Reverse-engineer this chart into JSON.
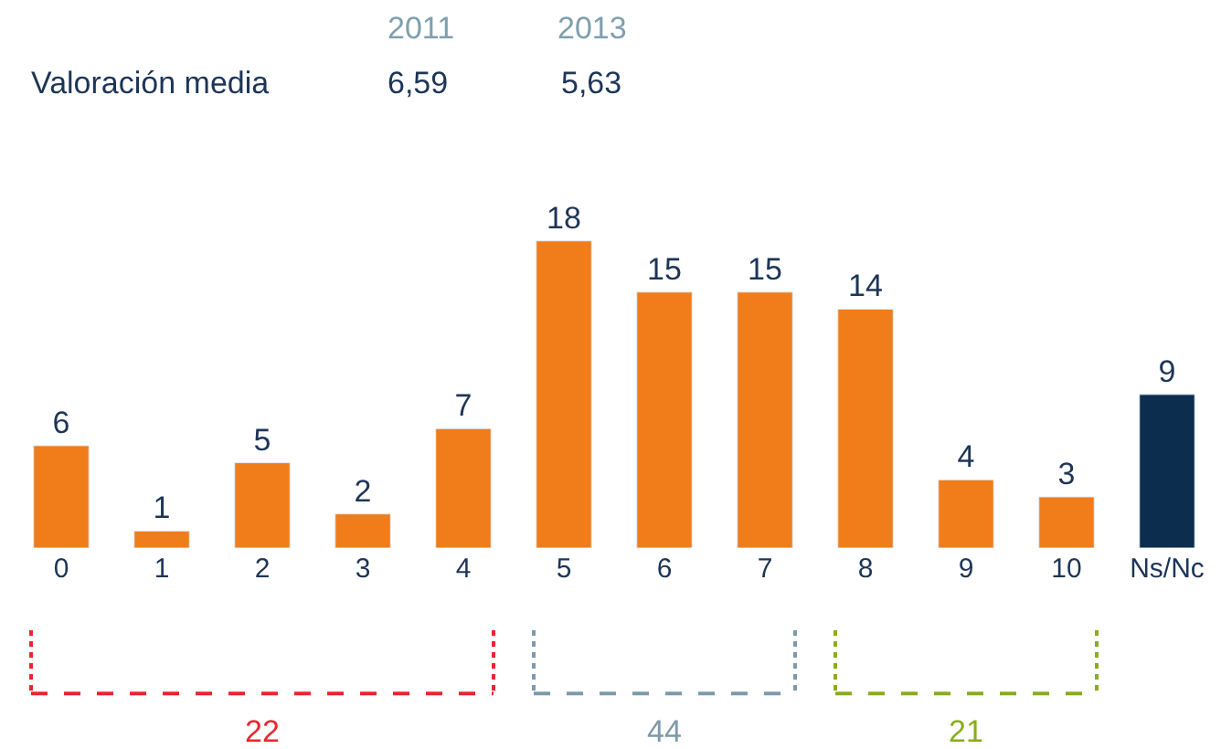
{
  "chart_data": {
    "type": "bar",
    "categories": [
      "0",
      "1",
      "2",
      "3",
      "4",
      "5",
      "6",
      "7",
      "8",
      "9",
      "10",
      "Ns/Nc"
    ],
    "values": [
      6,
      1,
      5,
      2,
      7,
      18,
      15,
      15,
      14,
      4,
      3,
      9
    ],
    "colors": [
      "#f07c1a",
      "#f07c1a",
      "#f07c1a",
      "#f07c1a",
      "#f07c1a",
      "#f07c1a",
      "#f07c1a",
      "#f07c1a",
      "#f07c1a",
      "#f07c1a",
      "#f07c1a",
      "#0d2d4f"
    ],
    "data_labels": true,
    "tick_labels": "x",
    "annotations": [
      "2011",
      "2013",
      "Valoración media",
      "6,59",
      "5,63",
      "22",
      "44",
      "21"
    ]
  }
}
